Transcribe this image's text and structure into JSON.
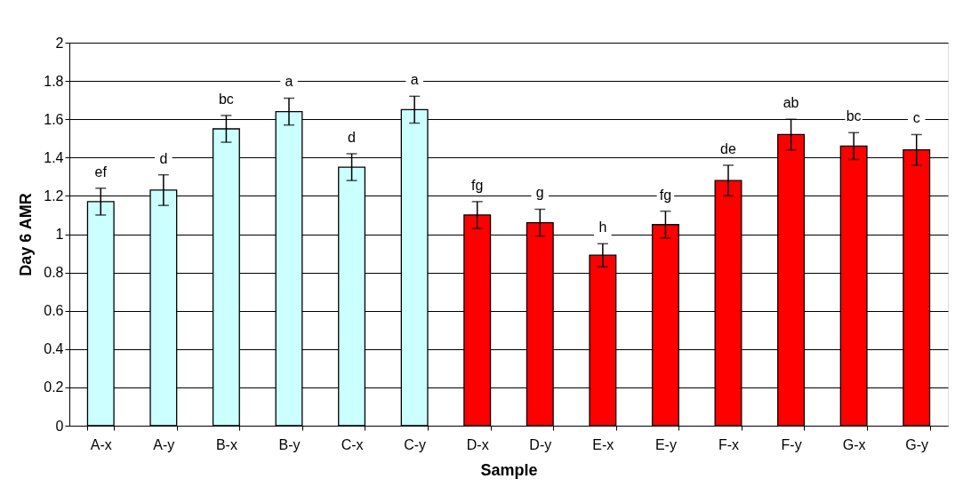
{
  "chart_data": {
    "type": "bar",
    "xlabel": "Sample",
    "ylabel": "Day 6 AMR",
    "categories": [
      "A-x",
      "A-y",
      "B-x",
      "B-y",
      "C-x",
      "C-y",
      "D-x",
      "D-y",
      "E-x",
      "E-y",
      "F-x",
      "F-y",
      "G-x",
      "G-y"
    ],
    "values": [
      1.17,
      1.23,
      1.55,
      1.64,
      1.35,
      1.65,
      1.1,
      1.06,
      0.89,
      1.05,
      1.28,
      1.52,
      1.46,
      1.44
    ],
    "errors": [
      0.07,
      0.08,
      0.07,
      0.07,
      0.07,
      0.07,
      0.07,
      0.07,
      0.06,
      0.07,
      0.08,
      0.08,
      0.07,
      0.08
    ],
    "colors": [
      "#ccffff",
      "#ccffff",
      "#ccffff",
      "#ccffff",
      "#ccffff",
      "#ccffff",
      "#ff0000",
      "#ff0000",
      "#ff0000",
      "#ff0000",
      "#ff0000",
      "#ff0000",
      "#ff0000",
      "#ff0000"
    ],
    "ylim": [
      0,
      2
    ],
    "yticks": [
      0,
      0.2,
      0.4,
      0.6,
      0.8,
      1,
      1.2,
      1.4,
      1.6,
      1.8,
      2
    ],
    "grid": "y",
    "legend": false,
    "annotations": [
      {
        "text": "ef",
        "x": "A-x",
        "y": 1.24
      },
      {
        "text": "d",
        "x": "A-y",
        "y": 1.31
      },
      {
        "text": "bc",
        "x": "B-x",
        "y": 1.62
      },
      {
        "text": "a",
        "x": "B-y",
        "y": 1.71
      },
      {
        "text": "d",
        "x": "C-x",
        "y": 1.42
      },
      {
        "text": "a",
        "x": "C-y",
        "y": 1.72
      },
      {
        "text": "fg",
        "x": "D-x",
        "y": 1.17
      },
      {
        "text": "g",
        "x": "D-y",
        "y": 1.13
      },
      {
        "text": "h",
        "x": "E-x",
        "y": 0.95
      },
      {
        "text": "fg",
        "x": "E-y",
        "y": 1.12
      },
      {
        "text": "de",
        "x": "F-x",
        "y": 1.36
      },
      {
        "text": "ab",
        "x": "F-y",
        "y": 1.6
      },
      {
        "text": "bc",
        "x": "G-x",
        "y": 1.53
      },
      {
        "text": "c",
        "x": "G-y",
        "y": 1.52
      }
    ]
  }
}
